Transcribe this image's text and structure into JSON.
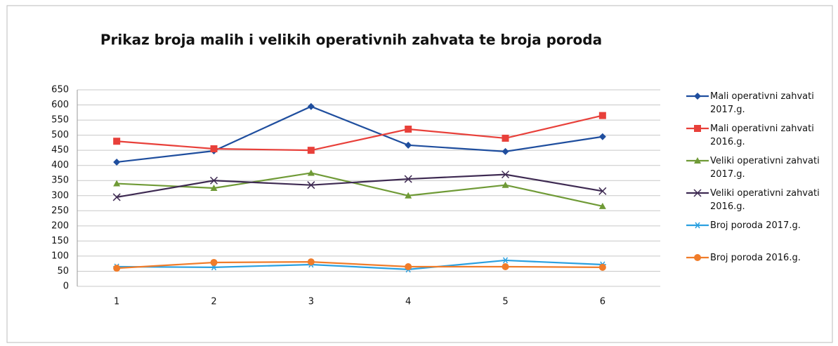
{
  "chart_data": {
    "type": "line",
    "title": "Prikaz broja malih i velikih operativnih zahvata te broja poroda",
    "categories": [
      "1",
      "2",
      "3",
      "4",
      "5",
      "6"
    ],
    "series": [
      {
        "name": "Mali operativni zahvati 2017.g.",
        "color": "#1f4e9e",
        "marker": "diamond",
        "values": [
          411,
          448,
          595,
          467,
          446,
          495
        ]
      },
      {
        "name": "Mali operativni zahvati 2016.g.",
        "color": "#e8403a",
        "marker": "square",
        "values": [
          480,
          455,
          450,
          520,
          490,
          565
        ]
      },
      {
        "name": "Veliki operativni zahvati 2017.g.",
        "color": "#6f9a36",
        "marker": "triangle",
        "values": [
          340,
          325,
          375,
          300,
          335,
          265
        ]
      },
      {
        "name": "Veliki operativni zahvati 2016.g.",
        "color": "#3e2a52",
        "marker": "x",
        "values": [
          295,
          350,
          335,
          355,
          370,
          315
        ]
      },
      {
        "name": "Broj poroda 2017.g.",
        "color": "#2aa0e0",
        "marker": "star",
        "values": [
          65,
          63,
          72,
          56,
          86,
          72
        ]
      },
      {
        "name": "Broj poroda 2016.g.",
        "color": "#f07c2a",
        "marker": "circle",
        "values": [
          60,
          79,
          81,
          65,
          65,
          63
        ]
      }
    ],
    "ylim": [
      0,
      650
    ],
    "yticks": [
      0,
      50,
      100,
      150,
      200,
      250,
      300,
      350,
      400,
      450,
      500,
      550,
      600,
      650
    ],
    "grid": true,
    "legend": "right"
  }
}
